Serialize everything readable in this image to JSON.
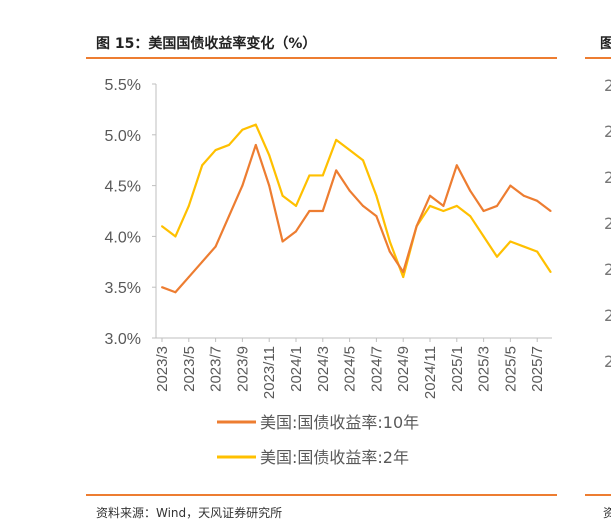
{
  "title": "图 15：美国国债收益率变化（%）",
  "source": "资料来源：Wind，天风证券研究所",
  "right_panel": {
    "title_fragment": "图",
    "tick_fragments": [
      "2",
      "2",
      "2",
      "2",
      "2",
      "2",
      "2"
    ],
    "source_fragment": "资"
  },
  "colors": {
    "accent": "#ed7d31",
    "ten_year": "#ed7d31",
    "two_year": "#ffc000",
    "axis": "#bfbfbf",
    "text": "#595959"
  },
  "chart_data": {
    "type": "line",
    "title": "",
    "xlabel": "",
    "ylabel": "",
    "ylim": [
      3.0,
      5.5
    ],
    "y_ticks": [
      "3.0%",
      "3.5%",
      "4.0%",
      "4.5%",
      "5.0%",
      "5.5%"
    ],
    "y_tick_values": [
      3.0,
      3.5,
      4.0,
      4.5,
      5.0,
      5.5
    ],
    "x_ticks": [
      "2023/3",
      "2023/5",
      "2023/7",
      "2023/9",
      "2023/11",
      "2024/1",
      "2024/3",
      "2024/5",
      "2024/7",
      "2024/9",
      "2024/11",
      "2025/1",
      "2025/3",
      "2025/5",
      "2025/7"
    ],
    "x": [
      "2023-03",
      "2023-04",
      "2023-05",
      "2023-06",
      "2023-07",
      "2023-08",
      "2023-09",
      "2023-10",
      "2023-11",
      "2023-12",
      "2024-01",
      "2024-02",
      "2024-03",
      "2024-04",
      "2024-05",
      "2024-06",
      "2024-07",
      "2024-08",
      "2024-09",
      "2024-10",
      "2024-11",
      "2024-12",
      "2025-01",
      "2025-02",
      "2025-03",
      "2025-04",
      "2025-05",
      "2025-06",
      "2025-07",
      "2025-08"
    ],
    "grid": false,
    "legend": "bottom",
    "series": [
      {
        "name": "美国:国债收益率:10年",
        "values": [
          3.5,
          3.45,
          3.6,
          3.75,
          3.9,
          4.2,
          4.5,
          4.9,
          4.5,
          3.95,
          4.05,
          4.25,
          4.25,
          4.65,
          4.45,
          4.3,
          4.2,
          3.85,
          3.65,
          4.1,
          4.4,
          4.3,
          4.7,
          4.45,
          4.25,
          4.3,
          4.5,
          4.4,
          4.35,
          4.25
        ]
      },
      {
        "name": "美国:国债收益率:2年",
        "values": [
          4.1,
          4.0,
          4.3,
          4.7,
          4.85,
          4.9,
          5.05,
          5.1,
          4.8,
          4.4,
          4.3,
          4.6,
          4.6,
          4.95,
          4.85,
          4.75,
          4.4,
          3.95,
          3.6,
          4.1,
          4.3,
          4.25,
          4.3,
          4.2,
          4.0,
          3.8,
          3.95,
          3.9,
          3.85,
          3.65
        ]
      }
    ]
  }
}
